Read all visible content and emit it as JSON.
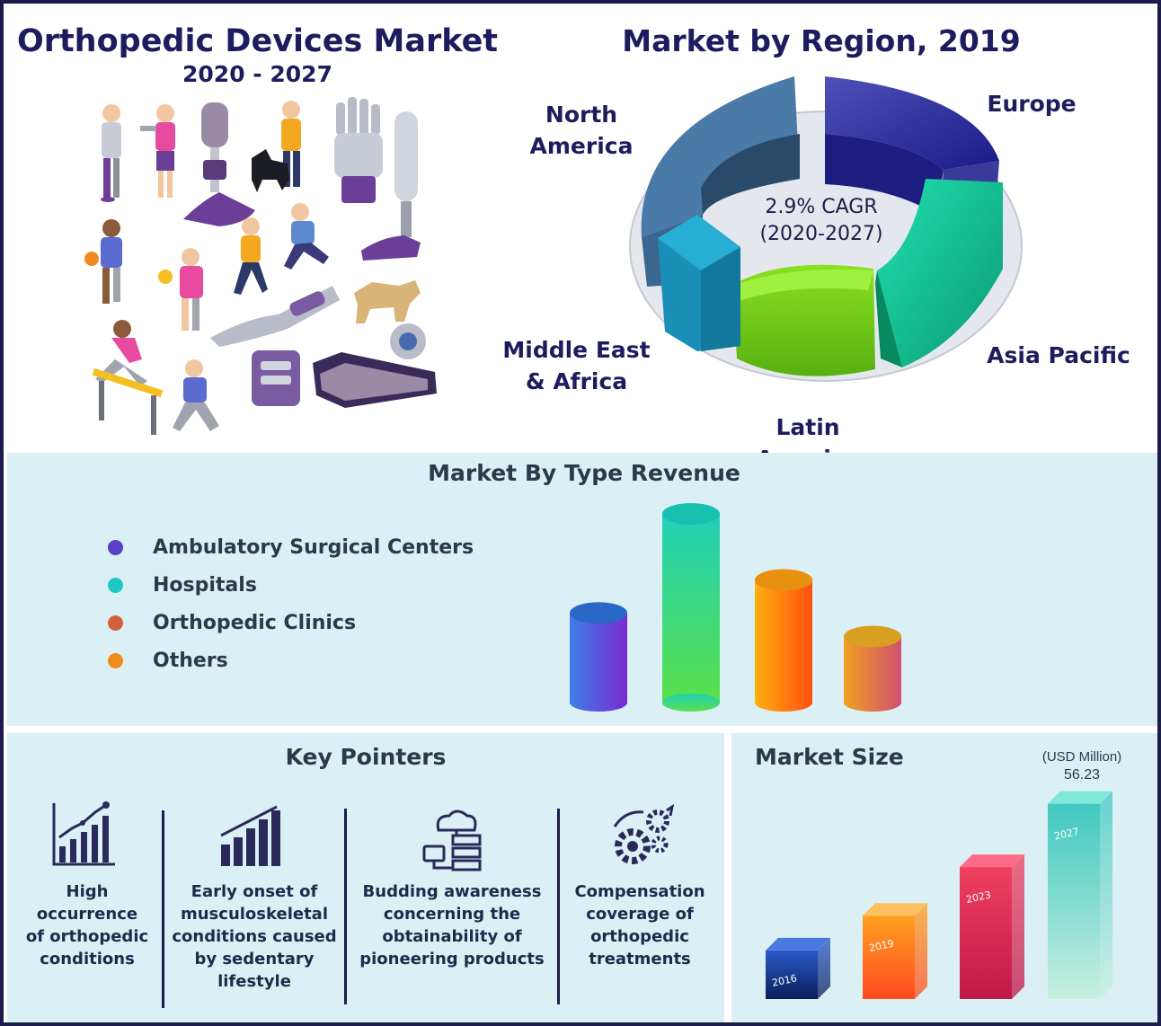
{
  "header": {
    "title": "Orthopedic Devices Market",
    "years": "2020 - 2027"
  },
  "region": {
    "title": "Market by Region, 2019",
    "cagr_line1": "2.9% CAGR",
    "cagr_line2": "(2020-2027)",
    "labels": {
      "north_america": [
        "North",
        "America"
      ],
      "europe": "Europe",
      "asia_pacific": "Asia Pacific",
      "latin_america": "Latin America",
      "mea": [
        "Middle East",
        "& Africa"
      ]
    }
  },
  "type_revenue": {
    "title": "Market By Type Revenue",
    "legend": [
      {
        "label": "Ambulatory Surgical Centers",
        "color": "#5a3fc8"
      },
      {
        "label": "Hospitals",
        "color": "#1ec8c0"
      },
      {
        "label": "Orthopedic Clinics",
        "color": "#d2603a"
      },
      {
        "label": "Others",
        "color": "#ee8c1c"
      }
    ]
  },
  "key_pointers": {
    "title": "Key Pointers",
    "items": [
      {
        "lines": [
          "High",
          "occurrence",
          "of orthopedic",
          "conditions"
        ],
        "icon": "line-growth-chart-icon"
      },
      {
        "lines": [
          "Early onset of",
          "musculoskeletal",
          "conditions caused",
          "by sedentary",
          "lifestyle"
        ],
        "icon": "bar-chart-icon"
      },
      {
        "lines": [
          "Budding awareness",
          "concerning the",
          "obtainability of",
          "pioneering products"
        ],
        "icon": "cloud-server-icon"
      },
      {
        "lines": [
          "Compensation",
          "coverage of",
          "orthopedic",
          "treatments"
        ],
        "icon": "gears-icon"
      }
    ]
  },
  "market_size": {
    "title": "Market Size",
    "unit": "(USD Million)",
    "value_label": "56.23"
  },
  "chart_data": [
    {
      "type": "pie",
      "title": "Market by Region, 2019",
      "categories": [
        "North America",
        "Europe",
        "Asia Pacific",
        "Latin America",
        "Middle East & Africa"
      ],
      "colors": [
        "#3f6f9a",
        "#2a2a9c",
        "#12b48a",
        "#6ed418",
        "#1a8ab0"
      ],
      "annotation": "2.9% CAGR (2020-2027)"
    },
    {
      "type": "bar",
      "title": "Market By Type Revenue",
      "categories": [
        "Ambulatory Surgical Centers",
        "Hospitals",
        "Orthopedic Clinics",
        "Others"
      ],
      "values": [
        3.8,
        8.0,
        5.2,
        2.8
      ],
      "legend": "left"
    },
    {
      "type": "bar",
      "title": "Market Size",
      "ylabel": "(USD Million)",
      "categories": [
        "2016",
        "2019",
        "2023",
        "2027"
      ],
      "values": [
        14,
        24,
        38,
        56.23
      ],
      "data_labels": [
        "",
        "",
        "",
        "56.23"
      ]
    }
  ]
}
